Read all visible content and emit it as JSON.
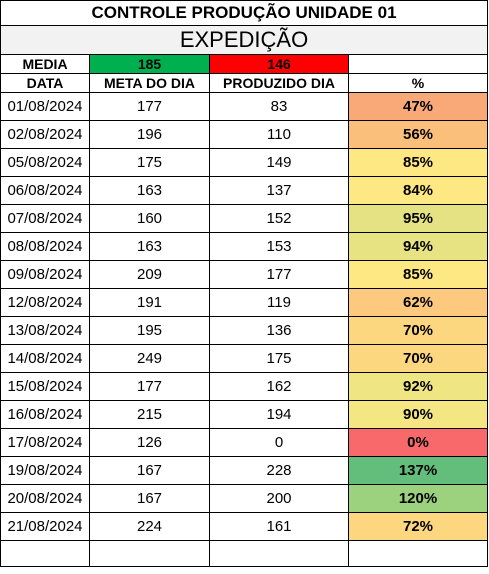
{
  "title": "CONTROLE PRODUÇÃO UNIDADE 01",
  "subtitle": "EXPEDIÇÃO",
  "summary": {
    "label": "MEDIA",
    "meta": "185",
    "produzido": "146",
    "meta_color": "#00b050",
    "produzido_color": "#ff0000"
  },
  "headers": {
    "data": "DATA",
    "meta": "META DO DIA",
    "produzido": "PRODUZIDO DIA",
    "pct": "%"
  },
  "rows": [
    {
      "data": "01/08/2024",
      "meta": "177",
      "produzido": "83",
      "pct": "47%",
      "color": "#f8a977"
    },
    {
      "data": "02/08/2024",
      "meta": "196",
      "produzido": "110",
      "pct": "56%",
      "color": "#fbbf7c"
    },
    {
      "data": "05/08/2024",
      "meta": "175",
      "produzido": "149",
      "pct": "85%",
      "color": "#fee883"
    },
    {
      "data": "06/08/2024",
      "meta": "163",
      "produzido": "137",
      "pct": "84%",
      "color": "#fee883"
    },
    {
      "data": "07/08/2024",
      "meta": "160",
      "produzido": "152",
      "pct": "95%",
      "color": "#e4e283"
    },
    {
      "data": "08/08/2024",
      "meta": "163",
      "produzido": "153",
      "pct": "94%",
      "color": "#e8e382"
    },
    {
      "data": "09/08/2024",
      "meta": "209",
      "produzido": "177",
      "pct": "85%",
      "color": "#fee883"
    },
    {
      "data": "12/08/2024",
      "meta": "191",
      "produzido": "119",
      "pct": "62%",
      "color": "#fcc97e"
    },
    {
      "data": "13/08/2024",
      "meta": "195",
      "produzido": "136",
      "pct": "70%",
      "color": "#fdd680"
    },
    {
      "data": "14/08/2024",
      "meta": "249",
      "produzido": "175",
      "pct": "70%",
      "color": "#fdd680"
    },
    {
      "data": "15/08/2024",
      "meta": "177",
      "produzido": "162",
      "pct": "92%",
      "color": "#efe683"
    },
    {
      "data": "16/08/2024",
      "meta": "215",
      "produzido": "194",
      "pct": "90%",
      "color": "#f4e783"
    },
    {
      "data": "17/08/2024",
      "meta": "126",
      "produzido": "0",
      "pct": "0%",
      "color": "#f8696b"
    },
    {
      "data": "19/08/2024",
      "meta": "167",
      "produzido": "228",
      "pct": "137%",
      "color": "#63be7b"
    },
    {
      "data": "20/08/2024",
      "meta": "167",
      "produzido": "200",
      "pct": "120%",
      "color": "#9cd17e"
    },
    {
      "data": "21/08/2024",
      "meta": "224",
      "produzido": "161",
      "pct": "72%",
      "color": "#fdd780"
    }
  ]
}
